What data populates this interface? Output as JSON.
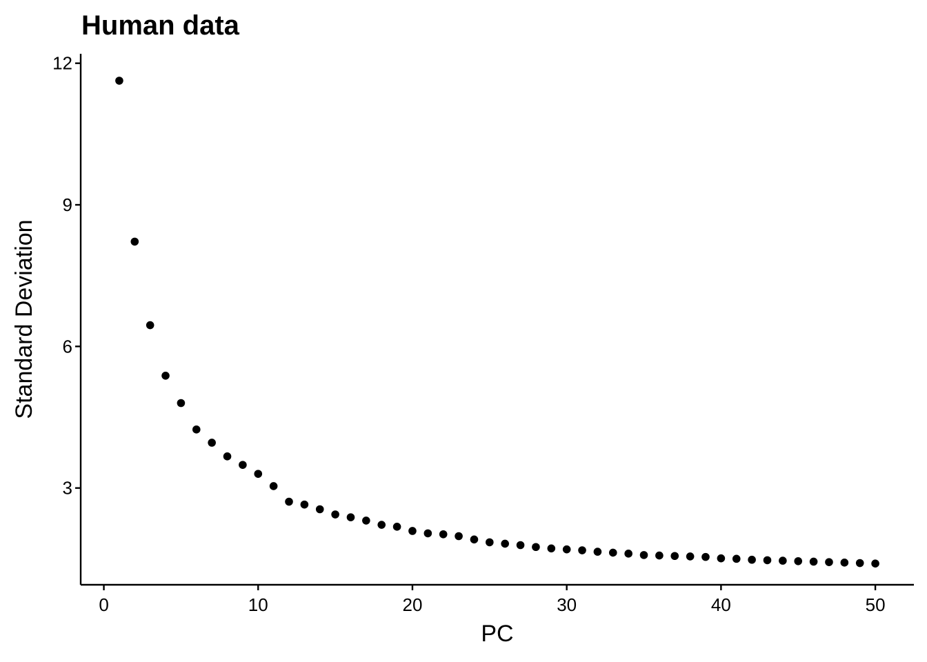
{
  "chart_data": {
    "type": "scatter",
    "title": "Human data",
    "xlabel": "PC",
    "ylabel": "Standard Deviation",
    "xlim": [
      -1.5,
      52.5
    ],
    "ylim": [
      0.95,
      12.2
    ],
    "xticks": [
      0,
      10,
      20,
      30,
      40,
      50
    ],
    "yticks": [
      3,
      6,
      9,
      12
    ],
    "grid": false,
    "legend": "none",
    "point_color": "#000000",
    "series": [
      {
        "x": [
          1,
          2,
          3,
          4,
          5,
          6,
          7,
          8,
          9,
          10,
          11,
          12,
          13,
          14,
          15,
          16,
          17,
          18,
          19,
          20,
          21,
          22,
          23,
          24,
          25,
          26,
          27,
          28,
          29,
          30,
          31,
          32,
          33,
          34,
          35,
          36,
          37,
          38,
          39,
          40,
          41,
          42,
          43,
          44,
          45,
          46,
          47,
          48,
          49,
          50
        ],
        "y": [
          11.63,
          8.22,
          6.45,
          5.38,
          4.8,
          4.24,
          3.96,
          3.67,
          3.49,
          3.3,
          3.04,
          2.71,
          2.65,
          2.55,
          2.44,
          2.38,
          2.31,
          2.22,
          2.18,
          2.09,
          2.04,
          2.02,
          1.98,
          1.91,
          1.85,
          1.82,
          1.79,
          1.75,
          1.72,
          1.7,
          1.68,
          1.65,
          1.63,
          1.61,
          1.58,
          1.57,
          1.56,
          1.55,
          1.54,
          1.51,
          1.5,
          1.48,
          1.47,
          1.46,
          1.45,
          1.44,
          1.43,
          1.42,
          1.41,
          1.4
        ]
      }
    ]
  }
}
